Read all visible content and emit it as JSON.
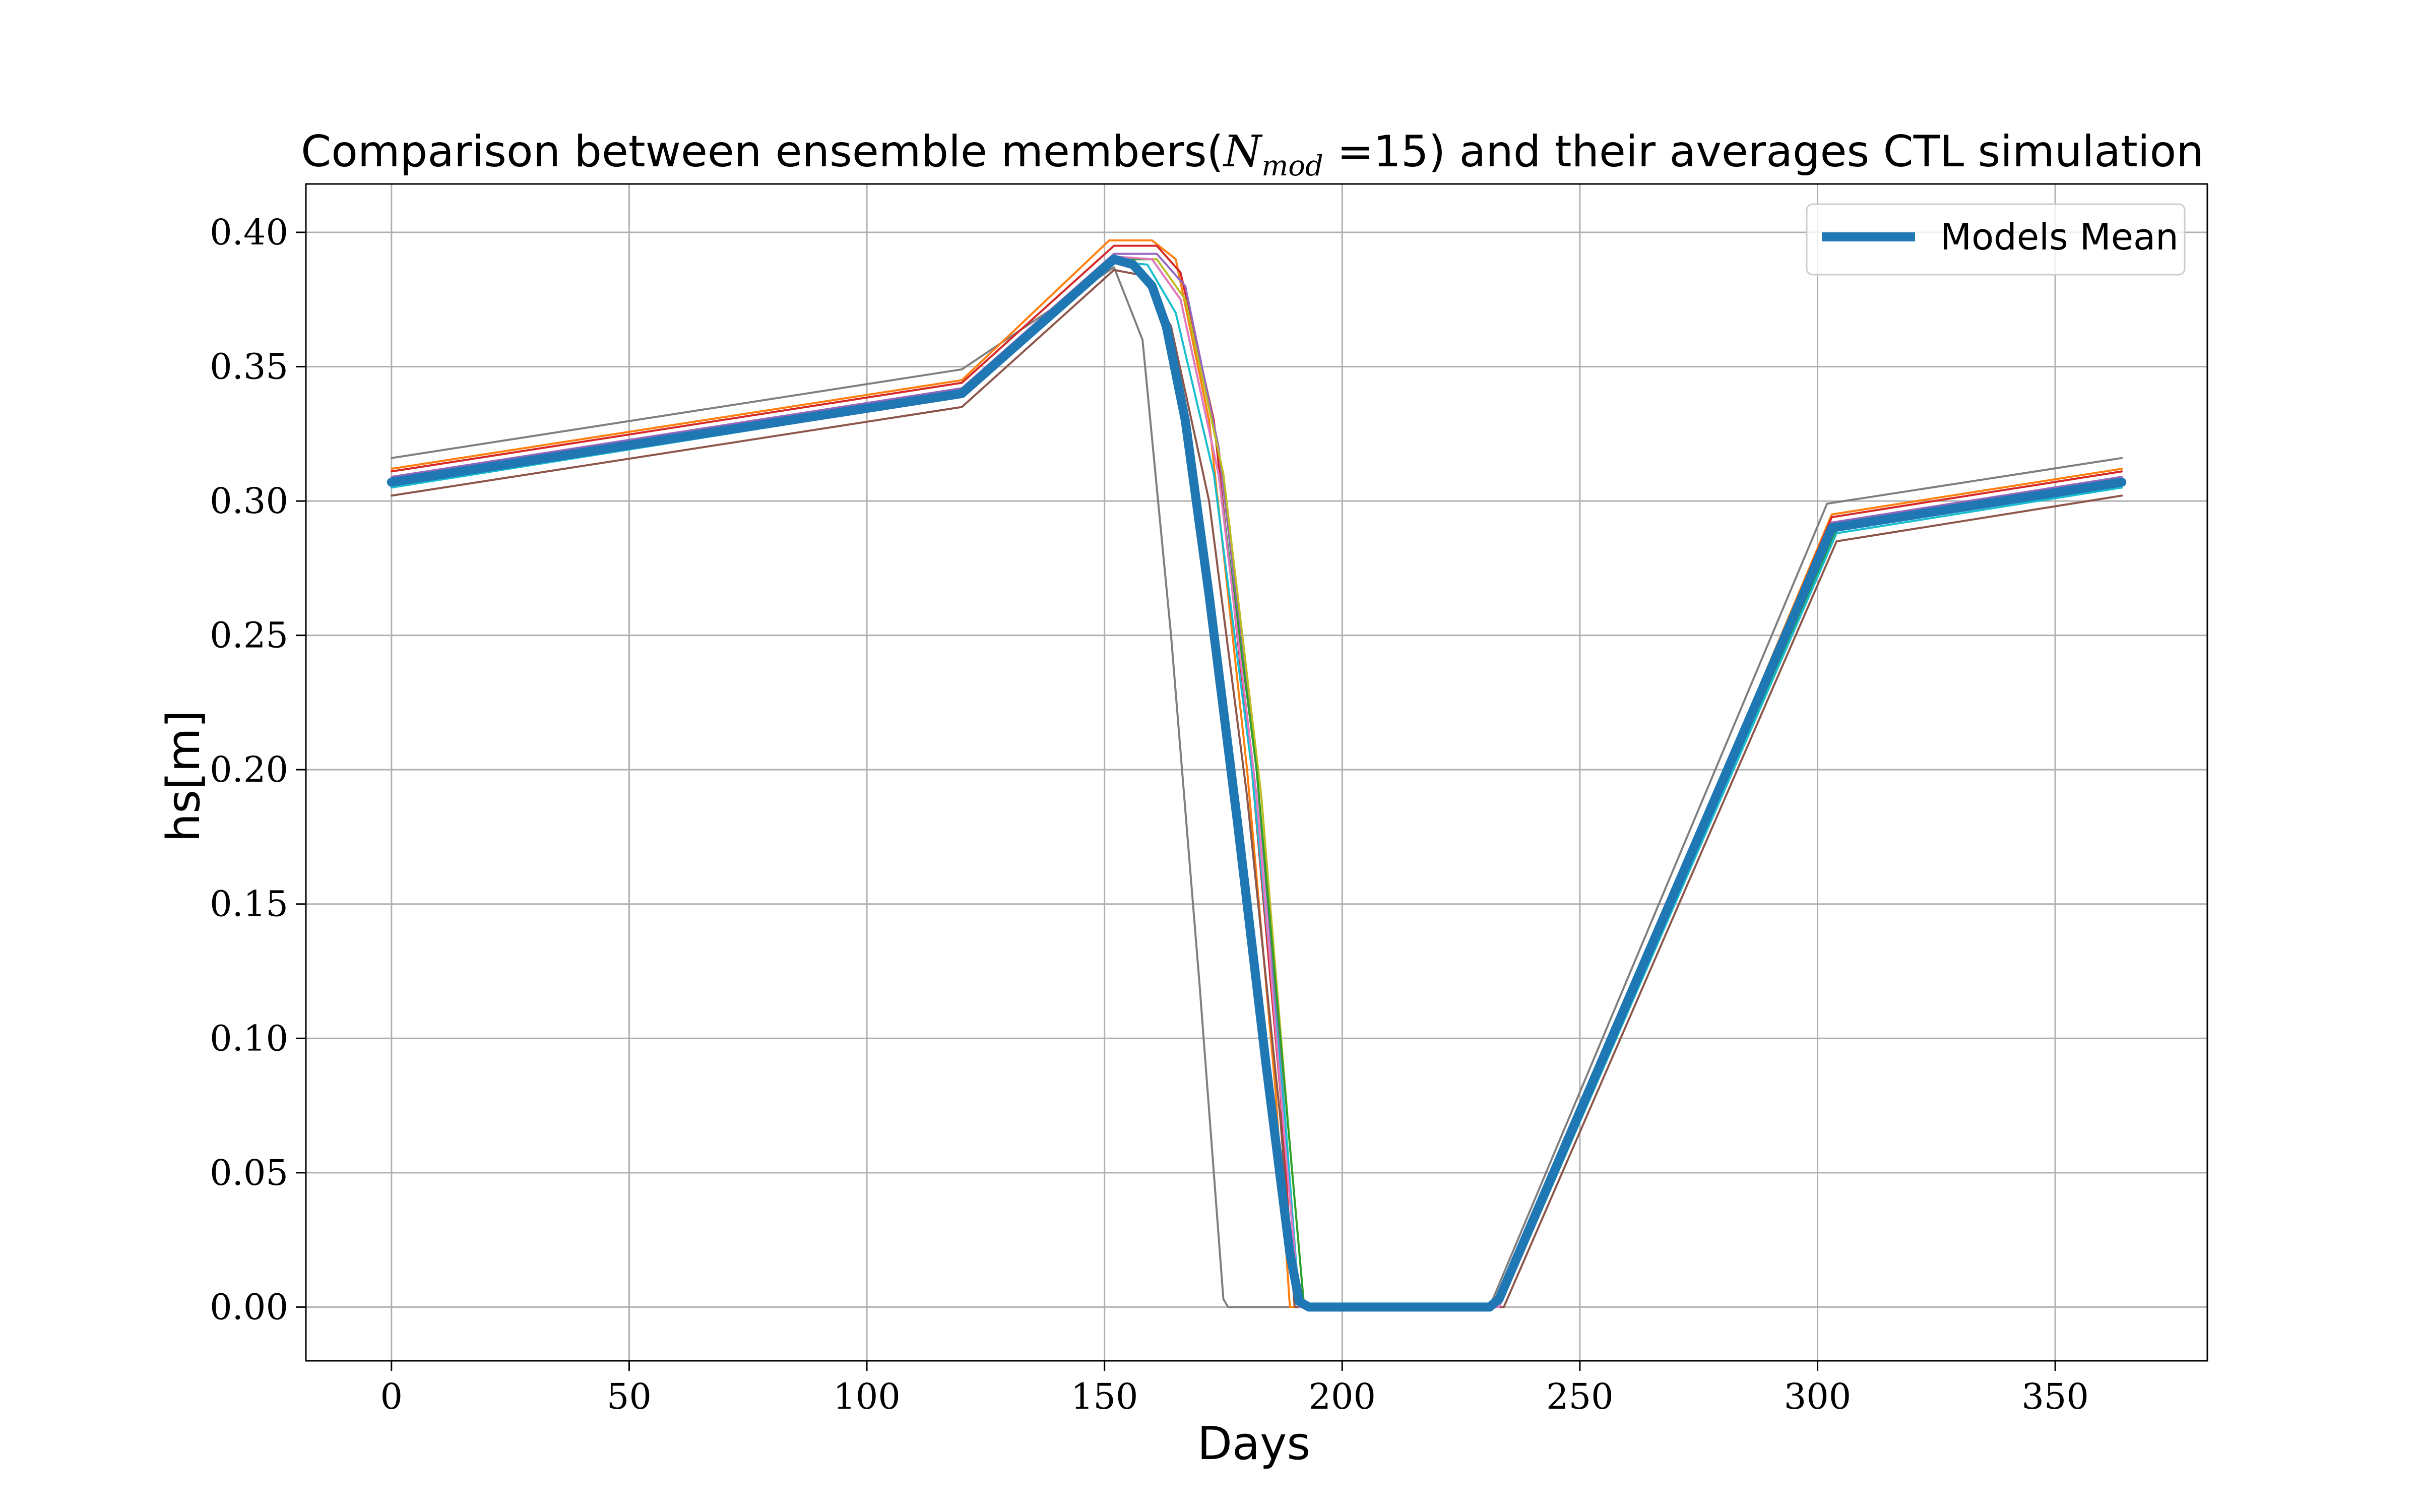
{
  "chart_data": {
    "type": "line",
    "title_parts": {
      "before": "Comparison between ensemble members(",
      "math_symbol": "N",
      "math_subscript": "mod",
      "equals": " =",
      "value": "15",
      "after": ") and their averages CTL simulation"
    },
    "xlabel": "Days",
    "ylabel": "hs[m]",
    "xlim": [
      -18,
      382
    ],
    "ylim": [
      -0.02,
      0.418
    ],
    "xticks": [
      0,
      50,
      100,
      150,
      200,
      250,
      300,
      350
    ],
    "xtick_labels": [
      "0",
      "50",
      "100",
      "150",
      "200",
      "250",
      "300",
      "350"
    ],
    "yticks": [
      0.0,
      0.05,
      0.1,
      0.15,
      0.2,
      0.25,
      0.3,
      0.35,
      0.4
    ],
    "ytick_labels": [
      "0.00",
      "0.05",
      "0.10",
      "0.15",
      "0.20",
      "0.25",
      "0.30",
      "0.35",
      "0.40"
    ],
    "grid": true,
    "legend_placement": "top-right",
    "legend_entries": [
      "Models Mean"
    ],
    "series": [
      {
        "color": "#7f7f7f",
        "values": [
          [
            0,
            0.316
          ],
          [
            120,
            0.349
          ],
          [
            152,
            0.387
          ],
          [
            158,
            0.36
          ],
          [
            164,
            0.25
          ],
          [
            170,
            0.12
          ],
          [
            175,
            0.003
          ],
          [
            176,
            0.0
          ],
          [
            231,
            0.0
          ],
          [
            302,
            0.299
          ],
          [
            364,
            0.316
          ]
        ]
      },
      {
        "color": "#ff7f0e",
        "values": [
          [
            0,
            0.312
          ],
          [
            120,
            0.345
          ],
          [
            151,
            0.397
          ],
          [
            160,
            0.397
          ],
          [
            165,
            0.39
          ],
          [
            172,
            0.33
          ],
          [
            180,
            0.2
          ],
          [
            186,
            0.08
          ],
          [
            189,
            0.0
          ],
          [
            233,
            0.0
          ],
          [
            303,
            0.295
          ],
          [
            364,
            0.312
          ]
        ]
      },
      {
        "color": "#d62728",
        "values": [
          [
            0,
            0.311
          ],
          [
            120,
            0.344
          ],
          [
            152,
            0.395
          ],
          [
            161,
            0.395
          ],
          [
            166,
            0.385
          ],
          [
            173,
            0.33
          ],
          [
            181,
            0.2
          ],
          [
            187,
            0.08
          ],
          [
            190,
            0.0
          ],
          [
            233,
            0.0
          ],
          [
            303,
            0.294
          ],
          [
            364,
            0.311
          ]
        ]
      },
      {
        "color": "#9467bd",
        "values": [
          [
            0,
            0.309
          ],
          [
            120,
            0.342
          ],
          [
            152,
            0.392
          ],
          [
            161,
            0.392
          ],
          [
            167,
            0.38
          ],
          [
            174,
            0.32
          ],
          [
            182,
            0.2
          ],
          [
            188,
            0.07
          ],
          [
            191,
            0.0
          ],
          [
            233,
            0.0
          ],
          [
            303,
            0.292
          ],
          [
            364,
            0.309
          ]
        ]
      },
      {
        "color": "#bcbd22",
        "values": [
          [
            0,
            0.307
          ],
          [
            120,
            0.341
          ],
          [
            152,
            0.39
          ],
          [
            161,
            0.39
          ],
          [
            167,
            0.375
          ],
          [
            175,
            0.31
          ],
          [
            183,
            0.19
          ],
          [
            189,
            0.06
          ],
          [
            192,
            0.0
          ],
          [
            233,
            0.0
          ],
          [
            304,
            0.29
          ],
          [
            364,
            0.307
          ]
        ]
      },
      {
        "color": "#2ca02c",
        "values": [
          [
            0,
            0.306
          ],
          [
            120,
            0.34
          ],
          [
            152,
            0.39
          ],
          [
            160,
            0.39
          ],
          [
            166,
            0.375
          ],
          [
            174,
            0.31
          ],
          [
            182,
            0.2
          ],
          [
            189,
            0.06
          ],
          [
            192,
            0.0
          ],
          [
            233,
            0.0
          ],
          [
            304,
            0.289
          ],
          [
            364,
            0.306
          ]
        ]
      },
      {
        "color": "#17becf",
        "values": [
          [
            0,
            0.305
          ],
          [
            120,
            0.339
          ],
          [
            152,
            0.389
          ],
          [
            159,
            0.388
          ],
          [
            165,
            0.37
          ],
          [
            173,
            0.31
          ],
          [
            181,
            0.2
          ],
          [
            188,
            0.07
          ],
          [
            191,
            0.0
          ],
          [
            233,
            0.0
          ],
          [
            304,
            0.288
          ],
          [
            364,
            0.305
          ]
        ]
      },
      {
        "color": "#8c564b",
        "values": [
          [
            0,
            0.302
          ],
          [
            120,
            0.335
          ],
          [
            152,
            0.386
          ],
          [
            158,
            0.384
          ],
          [
            164,
            0.365
          ],
          [
            172,
            0.3
          ],
          [
            180,
            0.19
          ],
          [
            187,
            0.07
          ],
          [
            190,
            0.0
          ],
          [
            234,
            0.0
          ],
          [
            304,
            0.285
          ],
          [
            364,
            0.302
          ]
        ]
      },
      {
        "color": "#e377c2",
        "values": [
          [
            0,
            0.308
          ],
          [
            120,
            0.341
          ],
          [
            152,
            0.391
          ],
          [
            160,
            0.39
          ],
          [
            166,
            0.375
          ],
          [
            174,
            0.31
          ],
          [
            182,
            0.19
          ],
          [
            188,
            0.06
          ],
          [
            191,
            0.0
          ],
          [
            233,
            0.0
          ],
          [
            303,
            0.291
          ],
          [
            364,
            0.308
          ]
        ]
      },
      {
        "color": "#1f77b4",
        "is_mean": true,
        "name": "Models Mean",
        "values": [
          [
            0,
            0.307
          ],
          [
            120,
            0.34
          ],
          [
            152,
            0.39
          ],
          [
            156,
            0.388
          ],
          [
            160,
            0.38
          ],
          [
            163,
            0.365
          ],
          [
            167,
            0.33
          ],
          [
            172,
            0.265
          ],
          [
            178,
            0.18
          ],
          [
            184,
            0.09
          ],
          [
            189,
            0.02
          ],
          [
            191,
            0.002
          ],
          [
            193,
            0.0
          ],
          [
            231,
            0.0
          ],
          [
            233,
            0.003
          ],
          [
            303,
            0.29
          ],
          [
            364,
            0.307
          ]
        ]
      }
    ]
  }
}
